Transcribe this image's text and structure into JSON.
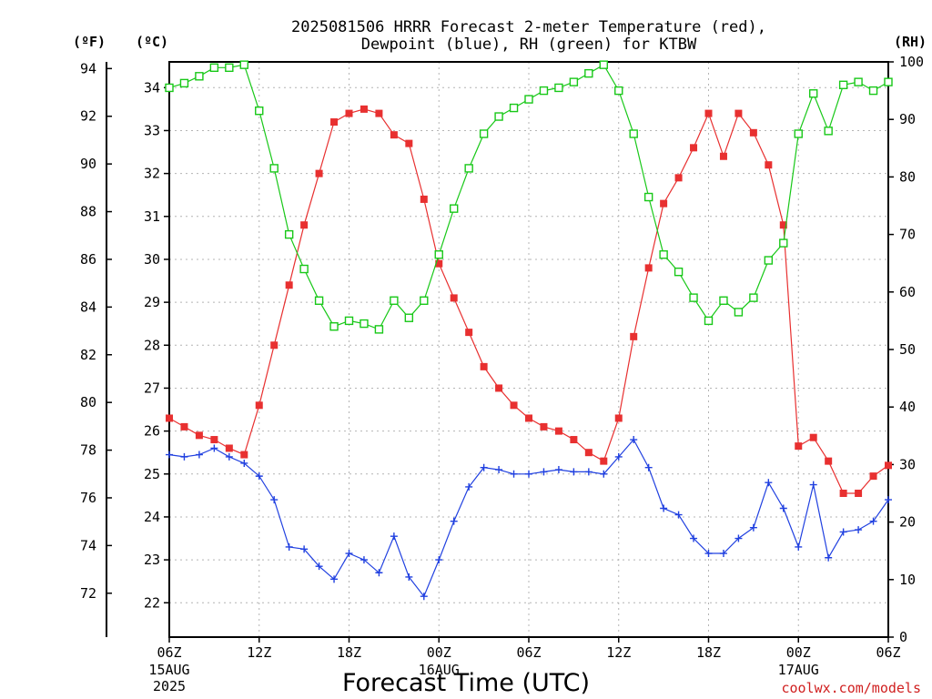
{
  "chart_data": {
    "type": "line",
    "title": [
      "2025081506 HRRR Forecast 2-meter Temperature (red),",
      "Dewpoint (blue), RH (green) for KTBW"
    ],
    "xlabel": "Forecast Time (UTC)",
    "credit": "coolwx.com/models",
    "unit_labels": {
      "f": "(ºF)",
      "c": "(ºC)",
      "rh": "(RH)"
    },
    "x_ticks": [
      {
        "h": 0,
        "label": "06Z",
        "sub": [
          "15AUG",
          "2025"
        ]
      },
      {
        "h": 6,
        "label": "12Z"
      },
      {
        "h": 12,
        "label": "18Z"
      },
      {
        "h": 18,
        "label": "00Z",
        "sub": [
          "16AUG"
        ]
      },
      {
        "h": 24,
        "label": "06Z"
      },
      {
        "h": 30,
        "label": "12Z"
      },
      {
        "h": 36,
        "label": "18Z"
      },
      {
        "h": 42,
        "label": "00Z",
        "sub": [
          "17AUG"
        ]
      },
      {
        "h": 48,
        "label": "06Z"
      }
    ],
    "xlim": [
      0,
      48
    ],
    "clim": [
      21.2,
      34.6
    ],
    "flim": [
      70.16,
      94.28
    ],
    "rhlim": [
      0,
      100
    ],
    "f_ticks": [
      72,
      74,
      76,
      78,
      80,
      82,
      84,
      86,
      88,
      90,
      92,
      94
    ],
    "c_ticks": [
      22,
      23,
      24,
      25,
      26,
      27,
      28,
      29,
      30,
      31,
      32,
      33,
      34
    ],
    "rh_ticks": [
      0,
      10,
      20,
      30,
      40,
      50,
      60,
      70,
      80,
      90,
      100
    ],
    "grid": true,
    "colors": {
      "temperature": "#e83030",
      "dewpoint": "#2040e0",
      "rh": "#18c818"
    },
    "series": [
      {
        "key": "temperature",
        "unit": "C",
        "values": [
          26.3,
          26.1,
          25.9,
          25.8,
          25.6,
          25.45,
          26.6,
          28.0,
          29.4,
          30.8,
          32.0,
          33.2,
          33.4,
          33.5,
          33.4,
          32.9,
          32.7,
          31.4,
          29.9,
          29.1,
          28.3,
          27.5,
          27.0,
          26.6,
          26.3,
          26.1,
          26.0,
          25.8,
          25.5,
          25.3,
          26.3,
          28.2,
          29.8,
          31.3,
          31.9,
          32.6,
          33.4,
          32.4,
          33.4,
          32.95,
          32.2,
          30.8,
          25.65,
          25.85,
          25.3,
          24.55,
          24.55,
          24.95,
          25.2
        ]
      },
      {
        "key": "dewpoint",
        "unit": "C",
        "values": [
          25.45,
          25.4,
          25.45,
          25.6,
          25.4,
          25.25,
          24.95,
          24.4,
          23.3,
          23.25,
          22.85,
          22.55,
          23.15,
          23.0,
          22.7,
          23.55,
          22.6,
          22.15,
          23.0,
          23.9,
          24.7,
          25.15,
          25.1,
          25.0,
          25.0,
          25.05,
          25.1,
          25.05,
          25.05,
          25.0,
          25.4,
          25.8,
          25.15,
          24.2,
          24.05,
          23.5,
          23.15,
          23.15,
          23.5,
          23.75,
          24.8,
          24.2,
          23.3,
          24.75,
          23.05,
          23.65,
          23.7,
          23.9,
          24.4
        ]
      },
      {
        "key": "rh",
        "unit": "%",
        "values": [
          95.5,
          96.3,
          97.5,
          99.0,
          99.0,
          99.5,
          91.5,
          81.5,
          70.0,
          64.0,
          58.5,
          54.0,
          55.0,
          54.5,
          53.5,
          58.5,
          55.5,
          58.5,
          66.5,
          74.5,
          81.5,
          87.5,
          90.5,
          92.0,
          93.5,
          95.0,
          95.5,
          96.5,
          98.0,
          99.5,
          95.0,
          87.5,
          76.5,
          66.5,
          63.5,
          59.0,
          55.0,
          58.5,
          56.5,
          59.0,
          65.5,
          68.5,
          87.5,
          94.5,
          88.0,
          96.0,
          96.5,
          95.0,
          96.5
        ]
      }
    ]
  }
}
